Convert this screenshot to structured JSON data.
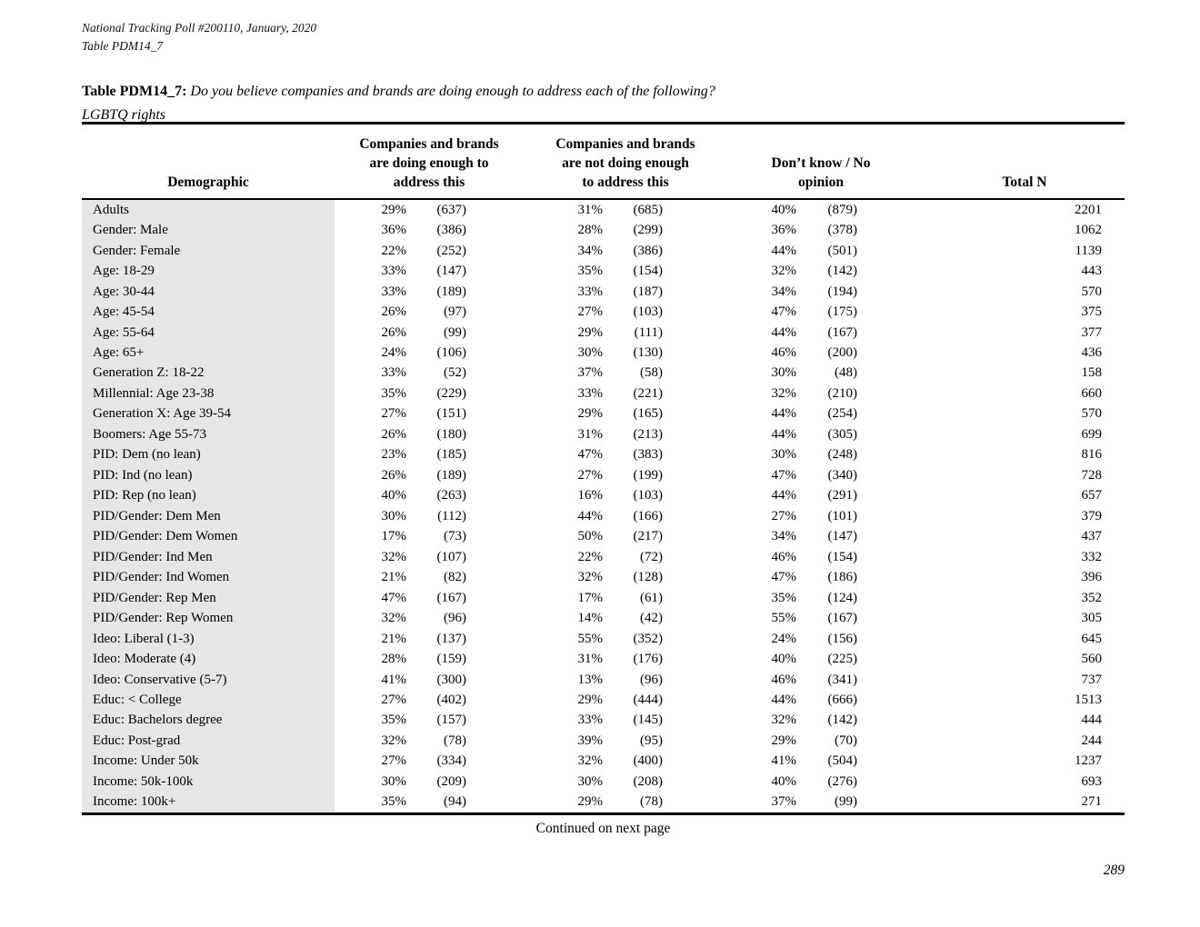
{
  "doc": {
    "header_line1": "National Tracking Poll #200110, January, 2020",
    "header_line2": "Table PDM14_7",
    "title_label": "Table PDM14_7:",
    "title_question": "Do you believe companies and brands are doing enough to address each of the following?",
    "title_topic": "LGBTQ rights",
    "continued_note": "Continued on next page",
    "page_number": "289"
  },
  "colors": {
    "row_shade": "#e6e6e6",
    "rule": "#000000",
    "text": "#000000"
  },
  "table": {
    "col_demographic": "Demographic",
    "col_doing": "Companies and brands\nare doing enough to\naddress this",
    "col_not_doing": "Companies and brands\nare not doing enough\nto address this",
    "col_dk": "Don’t know / No\nopinion",
    "col_total": "Total N",
    "rows": [
      {
        "demographic": "Adults",
        "doing_pct": "29%",
        "doing_n": "(637)",
        "not_doing_pct": "31%",
        "not_doing_n": "(685)",
        "dk_pct": "40%",
        "dk_n": "(879)",
        "total_n": "2201"
      },
      {
        "demographic": "Gender: Male",
        "doing_pct": "36%",
        "doing_n": "(386)",
        "not_doing_pct": "28%",
        "not_doing_n": "(299)",
        "dk_pct": "36%",
        "dk_n": "(378)",
        "total_n": "1062"
      },
      {
        "demographic": "Gender: Female",
        "doing_pct": "22%",
        "doing_n": "(252)",
        "not_doing_pct": "34%",
        "not_doing_n": "(386)",
        "dk_pct": "44%",
        "dk_n": "(501)",
        "total_n": "1139"
      },
      {
        "demographic": "Age: 18-29",
        "doing_pct": "33%",
        "doing_n": "(147)",
        "not_doing_pct": "35%",
        "not_doing_n": "(154)",
        "dk_pct": "32%",
        "dk_n": "(142)",
        "total_n": "443"
      },
      {
        "demographic": "Age: 30-44",
        "doing_pct": "33%",
        "doing_n": "(189)",
        "not_doing_pct": "33%",
        "not_doing_n": "(187)",
        "dk_pct": "34%",
        "dk_n": "(194)",
        "total_n": "570"
      },
      {
        "demographic": "Age: 45-54",
        "doing_pct": "26%",
        "doing_n": "(97)",
        "not_doing_pct": "27%",
        "not_doing_n": "(103)",
        "dk_pct": "47%",
        "dk_n": "(175)",
        "total_n": "375"
      },
      {
        "demographic": "Age: 55-64",
        "doing_pct": "26%",
        "doing_n": "(99)",
        "not_doing_pct": "29%",
        "not_doing_n": "(111)",
        "dk_pct": "44%",
        "dk_n": "(167)",
        "total_n": "377"
      },
      {
        "demographic": "Age: 65+",
        "doing_pct": "24%",
        "doing_n": "(106)",
        "not_doing_pct": "30%",
        "not_doing_n": "(130)",
        "dk_pct": "46%",
        "dk_n": "(200)",
        "total_n": "436"
      },
      {
        "demographic": "Generation Z: 18-22",
        "doing_pct": "33%",
        "doing_n": "(52)",
        "not_doing_pct": "37%",
        "not_doing_n": "(58)",
        "dk_pct": "30%",
        "dk_n": "(48)",
        "total_n": "158"
      },
      {
        "demographic": "Millennial: Age 23-38",
        "doing_pct": "35%",
        "doing_n": "(229)",
        "not_doing_pct": "33%",
        "not_doing_n": "(221)",
        "dk_pct": "32%",
        "dk_n": "(210)",
        "total_n": "660"
      },
      {
        "demographic": "Generation X: Age 39-54",
        "doing_pct": "27%",
        "doing_n": "(151)",
        "not_doing_pct": "29%",
        "not_doing_n": "(165)",
        "dk_pct": "44%",
        "dk_n": "(254)",
        "total_n": "570"
      },
      {
        "demographic": "Boomers: Age 55-73",
        "doing_pct": "26%",
        "doing_n": "(180)",
        "not_doing_pct": "31%",
        "not_doing_n": "(213)",
        "dk_pct": "44%",
        "dk_n": "(305)",
        "total_n": "699"
      },
      {
        "demographic": "PID: Dem (no lean)",
        "doing_pct": "23%",
        "doing_n": "(185)",
        "not_doing_pct": "47%",
        "not_doing_n": "(383)",
        "dk_pct": "30%",
        "dk_n": "(248)",
        "total_n": "816"
      },
      {
        "demographic": "PID: Ind (no lean)",
        "doing_pct": "26%",
        "doing_n": "(189)",
        "not_doing_pct": "27%",
        "not_doing_n": "(199)",
        "dk_pct": "47%",
        "dk_n": "(340)",
        "total_n": "728"
      },
      {
        "demographic": "PID: Rep (no lean)",
        "doing_pct": "40%",
        "doing_n": "(263)",
        "not_doing_pct": "16%",
        "not_doing_n": "(103)",
        "dk_pct": "44%",
        "dk_n": "(291)",
        "total_n": "657"
      },
      {
        "demographic": "PID/Gender: Dem Men",
        "doing_pct": "30%",
        "doing_n": "(112)",
        "not_doing_pct": "44%",
        "not_doing_n": "(166)",
        "dk_pct": "27%",
        "dk_n": "(101)",
        "total_n": "379"
      },
      {
        "demographic": "PID/Gender: Dem Women",
        "doing_pct": "17%",
        "doing_n": "(73)",
        "not_doing_pct": "50%",
        "not_doing_n": "(217)",
        "dk_pct": "34%",
        "dk_n": "(147)",
        "total_n": "437"
      },
      {
        "demographic": "PID/Gender: Ind Men",
        "doing_pct": "32%",
        "doing_n": "(107)",
        "not_doing_pct": "22%",
        "not_doing_n": "(72)",
        "dk_pct": "46%",
        "dk_n": "(154)",
        "total_n": "332"
      },
      {
        "demographic": "PID/Gender: Ind Women",
        "doing_pct": "21%",
        "doing_n": "(82)",
        "not_doing_pct": "32%",
        "not_doing_n": "(128)",
        "dk_pct": "47%",
        "dk_n": "(186)",
        "total_n": "396"
      },
      {
        "demographic": "PID/Gender: Rep Men",
        "doing_pct": "47%",
        "doing_n": "(167)",
        "not_doing_pct": "17%",
        "not_doing_n": "(61)",
        "dk_pct": "35%",
        "dk_n": "(124)",
        "total_n": "352"
      },
      {
        "demographic": "PID/Gender: Rep Women",
        "doing_pct": "32%",
        "doing_n": "(96)",
        "not_doing_pct": "14%",
        "not_doing_n": "(42)",
        "dk_pct": "55%",
        "dk_n": "(167)",
        "total_n": "305"
      },
      {
        "demographic": "Ideo: Liberal (1-3)",
        "doing_pct": "21%",
        "doing_n": "(137)",
        "not_doing_pct": "55%",
        "not_doing_n": "(352)",
        "dk_pct": "24%",
        "dk_n": "(156)",
        "total_n": "645"
      },
      {
        "demographic": "Ideo: Moderate (4)",
        "doing_pct": "28%",
        "doing_n": "(159)",
        "not_doing_pct": "31%",
        "not_doing_n": "(176)",
        "dk_pct": "40%",
        "dk_n": "(225)",
        "total_n": "560"
      },
      {
        "demographic": "Ideo: Conservative (5-7)",
        "doing_pct": "41%",
        "doing_n": "(300)",
        "not_doing_pct": "13%",
        "not_doing_n": "(96)",
        "dk_pct": "46%",
        "dk_n": "(341)",
        "total_n": "737"
      },
      {
        "demographic": "Educ: < College",
        "doing_pct": "27%",
        "doing_n": "(402)",
        "not_doing_pct": "29%",
        "not_doing_n": "(444)",
        "dk_pct": "44%",
        "dk_n": "(666)",
        "total_n": "1513"
      },
      {
        "demographic": "Educ: Bachelors degree",
        "doing_pct": "35%",
        "doing_n": "(157)",
        "not_doing_pct": "33%",
        "not_doing_n": "(145)",
        "dk_pct": "32%",
        "dk_n": "(142)",
        "total_n": "444"
      },
      {
        "demographic": "Educ: Post-grad",
        "doing_pct": "32%",
        "doing_n": "(78)",
        "not_doing_pct": "39%",
        "not_doing_n": "(95)",
        "dk_pct": "29%",
        "dk_n": "(70)",
        "total_n": "244"
      },
      {
        "demographic": "Income: Under 50k",
        "doing_pct": "27%",
        "doing_n": "(334)",
        "not_doing_pct": "32%",
        "not_doing_n": "(400)",
        "dk_pct": "41%",
        "dk_n": "(504)",
        "total_n": "1237"
      },
      {
        "demographic": "Income: 50k-100k",
        "doing_pct": "30%",
        "doing_n": "(209)",
        "not_doing_pct": "30%",
        "not_doing_n": "(208)",
        "dk_pct": "40%",
        "dk_n": "(276)",
        "total_n": "693"
      },
      {
        "demographic": "Income: 100k+",
        "doing_pct": "35%",
        "doing_n": "(94)",
        "not_doing_pct": "29%",
        "not_doing_n": "(78)",
        "dk_pct": "37%",
        "dk_n": "(99)",
        "total_n": "271"
      }
    ]
  }
}
